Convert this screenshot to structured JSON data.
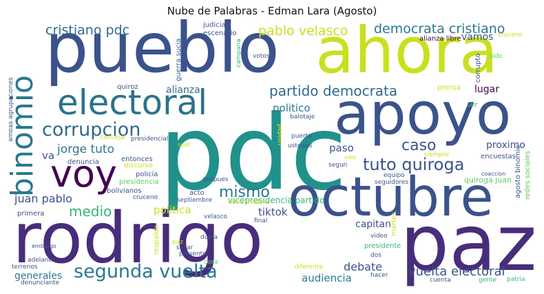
{
  "title": "Nube de Palabras - Edman Lara (Agosto)",
  "palette": {
    "dark_purple": "#440154",
    "indigo": "#3b528b",
    "blue": "#31688e",
    "teal": "#21918c",
    "green": "#35b779",
    "light_green": "#5ec962",
    "lime": "#90d743",
    "yellow": "#c8e020",
    "bright_yellow": "#fde725"
  },
  "words": {
    "pueblo": "pueblo",
    "ahora": "ahora",
    "apoyo": "apoyo",
    "pdc": "pdc",
    "electoral": "electoral",
    "octubre": "octubre",
    "rodrigo": "rodrigo",
    "paz": "paz",
    "voy": "voy",
    "binomio": "binomio",
    "corrupcion": "corrupcion",
    "cristiano_pdc": "cristiano pdc",
    "pablo_velasco": "pablo velasco",
    "democrata_cristiano": "democrata cristiano",
    "partido_democrata": "partido democrata",
    "tuto_quiroga": "tuto quiroga",
    "segunda_vuelta": "segunda vuelta",
    "mismo": "mismo",
    "caso": "caso",
    "jorge_tuto": "jorge tuto",
    "medio": "medio",
    "vuelta_electoral": "vuelta electoral",
    "juan_pablo": "juan pablo",
    "alianza": "alianza",
    "lugar": "lugar",
    "vamos": "vamos",
    "politico": "politico",
    "paso": "paso",
    "proximo": "proximo",
    "debate": "debate",
    "audiencia": "audiencia",
    "capitan": "capitan",
    "tiktok": "tiktok",
    "politica": "politica",
    "generales": "generales",
    "va": "va",
    "vicepresidencia_partido": "vicepresidencia partido",
    "quiroga_juan": "quiroga juan",
    "alianza_libre": "alianza libre",
    "judicial": "judicial",
    "escenario": "escenario",
    "guerra_sucia": "guerra sucia",
    "campana": "campana",
    "votos": "votos",
    "cruceno_top": "cruceno",
    "sido": "sido",
    "corrupto": "corrupto",
    "prensa": "prensa",
    "ser": "ser",
    "quiroz": "quiroz",
    "ambas_agrupaciones": "ambas agrupaciones",
    "concejal": "concejal",
    "presidencial": "presidencial",
    "solo": "solo",
    "unidad": "unidad",
    "balotaje": "balotaje",
    "puerta": "puerta",
    "ustedes": "ustedes",
    "odio": "odio",
    "siempre": "siempre",
    "segun": "segun",
    "encuestas": "encuestas",
    "redes_sociales": "redes sociales",
    "agosto_binomio": "agosto binomio",
    "coaccion": "coaccion",
    "denuncia": "denuncia",
    "entonces": "entonces",
    "discurso": "discurso",
    "policia": "policia",
    "presidencia": "presidencia",
    "bolivianos": "bolivianos",
    "cruceno": "cruceno",
    "despues": "despues",
    "acto": "acto",
    "septiembre": "septiembre",
    "equipo": "equipo",
    "seguidores": "seguidores",
    "ir": "ir",
    "doria_medina": "doria medina",
    "velasco": "velasco",
    "final": "final",
    "primera": "primera",
    "embargo": "embargo",
    "respaldo": "respaldo",
    "paz_small": "paz",
    "dupla": "dupla",
    "sacar": "sacar",
    "presento": "presento",
    "cosa": "cosa",
    "video": "video",
    "presidente": "presidente",
    "martes": "martes",
    "dos": "dos",
    "diferente": "diferente",
    "hacer": "hacer",
    "cuenta": "cuenta",
    "gente": "gente",
    "patria": "patria",
    "adelante": "adelante",
    "terrenos": "terrenos",
    "denunciante": "denunciante"
  }
}
